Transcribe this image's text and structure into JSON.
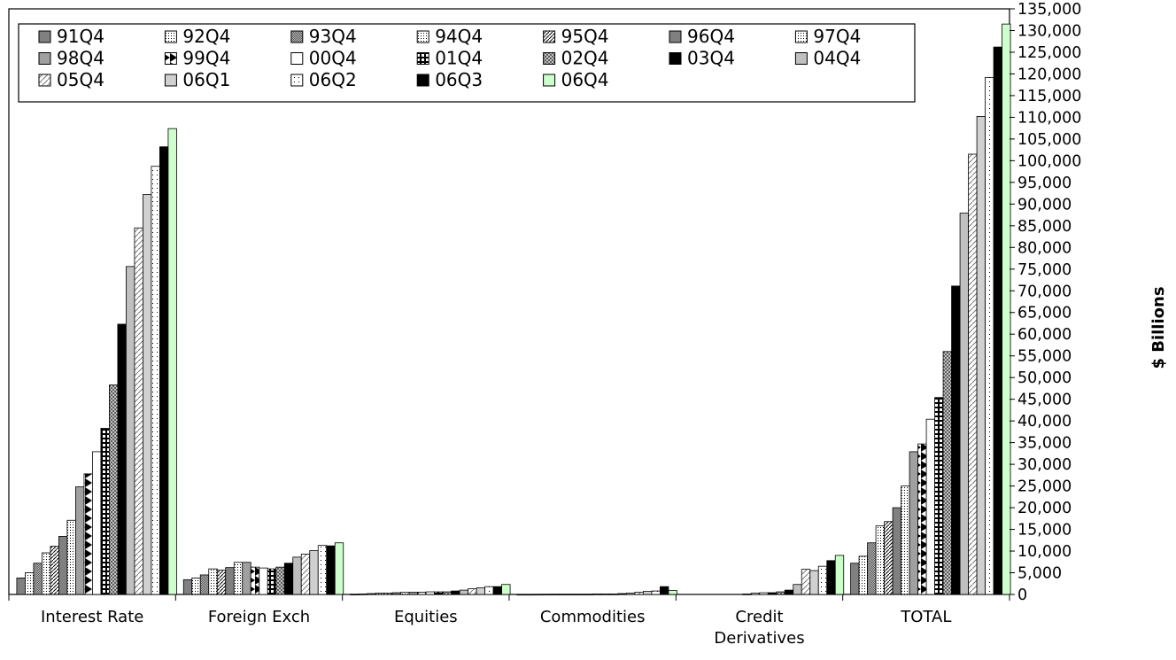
{
  "chart_data": {
    "type": "bar",
    "title": "",
    "ylabel": "$ Billions",
    "y_axis_position": "right",
    "ylim": [
      0,
      135000
    ],
    "y_ticks": [
      "0",
      "5,000",
      "10,000",
      "15,000",
      "20,000",
      "25,000",
      "30,000",
      "35,000",
      "40,000",
      "45,000",
      "50,000",
      "55,000",
      "60,000",
      "65,000",
      "70,000",
      "75,000",
      "80,000",
      "85,000",
      "90,000",
      "95,000",
      "100,000",
      "105,000",
      "110,000",
      "115,000",
      "120,000",
      "125,000",
      "130,000",
      "135,000"
    ],
    "categories": [
      [
        "Interest Rate"
      ],
      [
        "Foreign Exch"
      ],
      [
        "Equities"
      ],
      [
        "Commodities"
      ],
      [
        "Credit",
        "Derivatives"
      ],
      [
        "TOTAL"
      ]
    ],
    "legend_position": "top-left",
    "grid": false,
    "series": [
      {
        "name": "91Q4",
        "values": [
          3800,
          3400,
          50,
          20,
          0,
          7200
        ],
        "fill": "#808080",
        "pattern": "solid"
      },
      {
        "name": "92Q4",
        "values": [
          5000,
          3800,
          100,
          20,
          0,
          8800
        ],
        "fill": "#ffffff",
        "pattern": "dots"
      },
      {
        "name": "93Q4",
        "values": [
          7200,
          4500,
          200,
          30,
          0,
          11900
        ],
        "fill": "#888888",
        "pattern": "checker"
      },
      {
        "name": "94Q4",
        "values": [
          9600,
          5900,
          300,
          40,
          0,
          15800
        ],
        "fill": "#b0b0b0",
        "pattern": "dots"
      },
      {
        "name": "95Q4",
        "values": [
          11100,
          5600,
          300,
          50,
          0,
          16800
        ],
        "fill": "#ffffff",
        "pattern": "diag-dense"
      },
      {
        "name": "96Q4",
        "values": [
          13400,
          6200,
          400,
          50,
          0,
          20000
        ],
        "fill": "#808080",
        "pattern": "solid"
      },
      {
        "name": "97Q4",
        "values": [
          17100,
          7400,
          500,
          50,
          0,
          25000
        ],
        "fill": "#ffffff",
        "pattern": "dots"
      },
      {
        "name": "98Q4",
        "values": [
          24800,
          7400,
          500,
          50,
          100,
          32900
        ],
        "fill": "#a0a0a0",
        "pattern": "solid"
      },
      {
        "name": "99Q4",
        "values": [
          27800,
          6300,
          500,
          50,
          300,
          34700
        ],
        "fill": "#ffffff",
        "pattern": "triangles"
      },
      {
        "name": "00Q4",
        "values": [
          32900,
          6100,
          600,
          100,
          400,
          40400
        ],
        "fill": "#ffffff",
        "pattern": "solid"
      },
      {
        "name": "01Q4",
        "values": [
          38300,
          5900,
          600,
          100,
          400,
          45400
        ],
        "fill": "#000000",
        "pattern": "grid"
      },
      {
        "name": "02Q4",
        "values": [
          48300,
          6300,
          600,
          100,
          600,
          56000
        ],
        "fill": "#cccccc",
        "pattern": "diag-cross"
      },
      {
        "name": "03Q4",
        "values": [
          62300,
          7200,
          800,
          200,
          1000,
          71100
        ],
        "fill": "#000000",
        "pattern": "solid"
      },
      {
        "name": "04Q4",
        "values": [
          75600,
          8600,
          1000,
          300,
          2300,
          87900
        ],
        "fill": "#c0c0c0",
        "pattern": "solid"
      },
      {
        "name": "05Q4",
        "values": [
          84500,
          9300,
          1300,
          500,
          5800,
          101500
        ],
        "fill": "#ffffff",
        "pattern": "diag"
      },
      {
        "name": "06Q1",
        "values": [
          92200,
          10100,
          1500,
          700,
          5500,
          110200
        ],
        "fill": "#d0d0d0",
        "pattern": "solid"
      },
      {
        "name": "06Q2",
        "values": [
          98700,
          11300,
          1800,
          800,
          6500,
          119200
        ],
        "fill": "#ffffff",
        "pattern": "sparse-dots"
      },
      {
        "name": "06Q3",
        "values": [
          103200,
          11200,
          1800,
          1800,
          7800,
          126200
        ],
        "fill": "#000000",
        "pattern": "solid"
      },
      {
        "name": "06Q4",
        "values": [
          107400,
          11900,
          2300,
          900,
          9000,
          131500
        ],
        "fill": "#ccffcc",
        "pattern": "solid"
      }
    ]
  }
}
